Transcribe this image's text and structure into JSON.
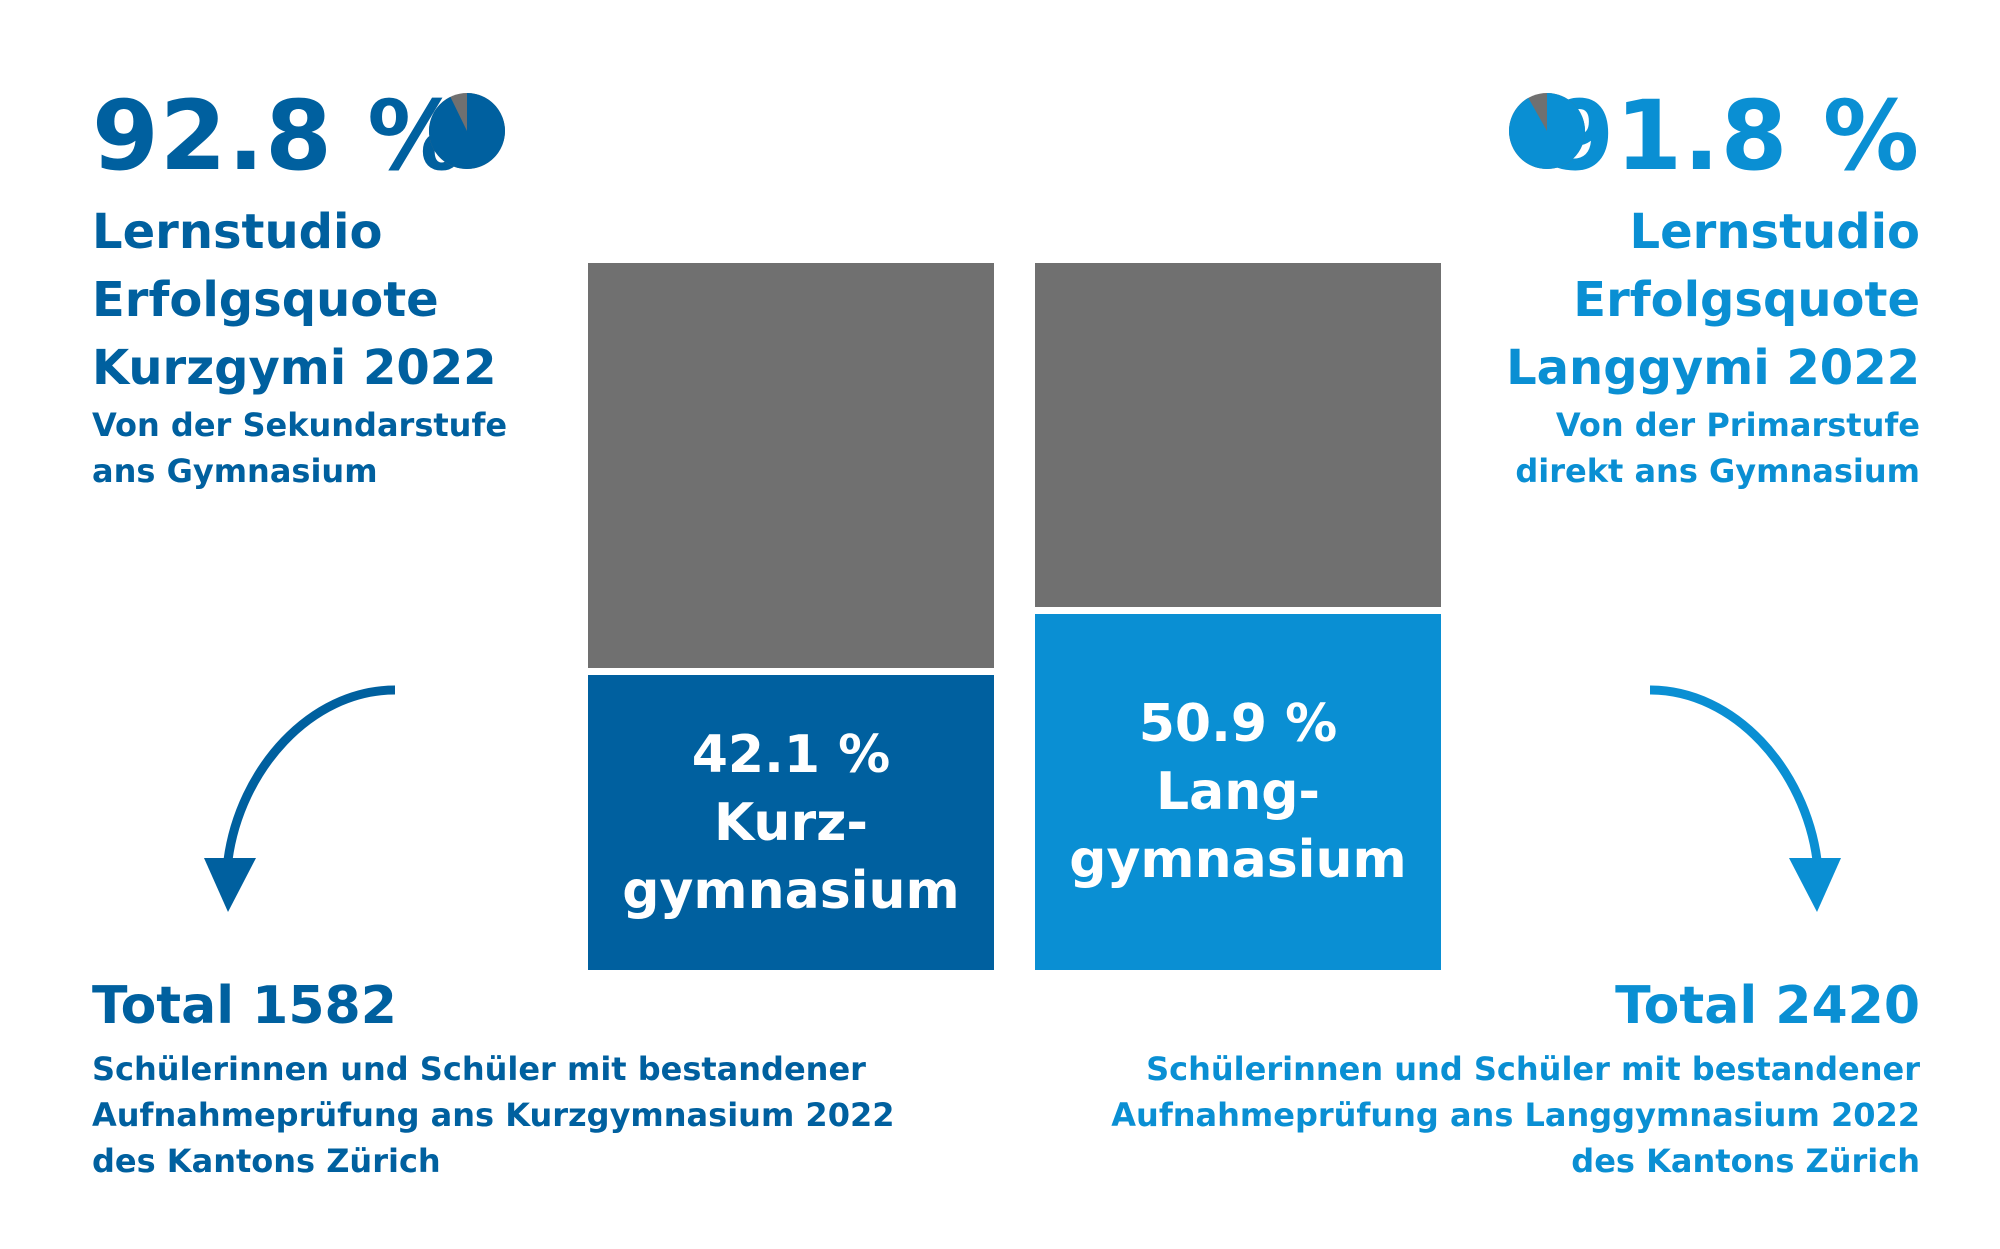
{
  "left": {
    "percent": "92.8 %",
    "heading_lines": [
      "Lernstudio",
      "Erfolgsquote",
      "Kurzgymi 2022"
    ],
    "sub_lines": [
      "Von der Sekundarstufe",
      "ans Gymnasium"
    ],
    "total": "Total 1582",
    "desc_lines": [
      "Schülerinnen und Schüler mit bestandener",
      "Aufnahmeprüfung ans Kurzgymnasium 2022",
      "des Kantons Zürich"
    ],
    "pie_fraction": 0.928,
    "color": "#00609f"
  },
  "right": {
    "percent": "91.8 %",
    "heading_lines": [
      "Lernstudio",
      "Erfolgsquote",
      "Langgymi 2022"
    ],
    "sub_lines": [
      "Von der Primarstufe",
      "direkt ans Gymnasium"
    ],
    "total": "Total 2420",
    "desc_lines": [
      "Schülerinnen und Schüler mit bestandener",
      "Aufnahmeprüfung ans Langgymnasium 2022",
      "des Kantons Zürich"
    ],
    "pie_fraction": 0.918,
    "color": "#0a8fd3"
  },
  "chart_data": {
    "type": "bar",
    "categories": [
      "Kurzgymnasium",
      "Langgymnasium"
    ],
    "series": [
      {
        "values": [
          42.1,
          50.9
        ],
        "colors": [
          "#00609f",
          "#0a8fd3"
        ],
        "labels": [
          [
            "42.1 %",
            "Kurz-",
            "gymnasium"
          ],
          [
            "50.9 %",
            "Lang-",
            "gymnasium"
          ]
        ]
      },
      {
        "values": [
          57.9,
          49.1
        ],
        "color": "#707070"
      }
    ],
    "ylim": [
      0,
      100
    ]
  }
}
